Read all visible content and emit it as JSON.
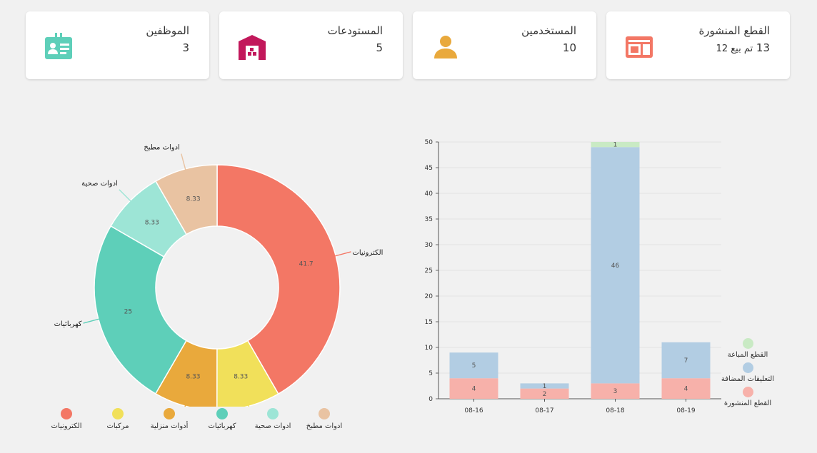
{
  "cards": [
    {
      "title": "القطع المنشورة",
      "value": "13",
      "sub": "تم بيع 12",
      "icon": "listing-icon",
      "color": "#f37765"
    },
    {
      "title": "المستخدمين",
      "value": "10",
      "icon": "user-icon",
      "color": "#e9a93c"
    },
    {
      "title": "المستودعات",
      "value": "5",
      "icon": "warehouse-icon",
      "color": "#c2185b"
    },
    {
      "title": "الموظفين",
      "value": "3",
      "icon": "id-badge-icon",
      "color": "#5ecfb9"
    }
  ],
  "donut": {
    "chart_data": {
      "type": "pie",
      "series": [
        {
          "name": "الكترونيات",
          "value": 41.7,
          "color": "#f37765"
        },
        {
          "name": "مركبات",
          "value": 8.33,
          "color": "#f1e05a"
        },
        {
          "name": "أدوات منزلية",
          "value": 8.33,
          "color": "#e9a93c"
        },
        {
          "name": "كهربائيات",
          "value": 25,
          "color": "#5ecfb9"
        },
        {
          "name": "ادوات صحية",
          "value": 8.33,
          "color": "#9de5d6"
        },
        {
          "name": "ادوات مطبخ",
          "value": 8.33,
          "color": "#e9c3a2"
        }
      ]
    }
  },
  "bar": {
    "chart_data": {
      "type": "bar",
      "categories": [
        "08-16",
        "08-17",
        "08-18",
        "08-19"
      ],
      "ylim": [
        0,
        50
      ],
      "yticks": [
        0,
        5,
        10,
        15,
        20,
        25,
        30,
        35,
        40,
        45,
        50
      ],
      "series": [
        {
          "name": "القطع المنشورة",
          "values": [
            4,
            2,
            3,
            4
          ],
          "color": "#f7b1aa"
        },
        {
          "name": "التعليقات المضافة",
          "values": [
            5,
            1,
            46,
            7
          ],
          "color": "#b2cde3"
        },
        {
          "name": "القطع المباعة",
          "values": [
            0,
            0,
            1,
            0
          ],
          "color": "#c9eac4"
        }
      ],
      "legend_order": [
        "القطع المباعة",
        "التعليقات المضافة",
        "القطع المنشورة"
      ]
    }
  }
}
